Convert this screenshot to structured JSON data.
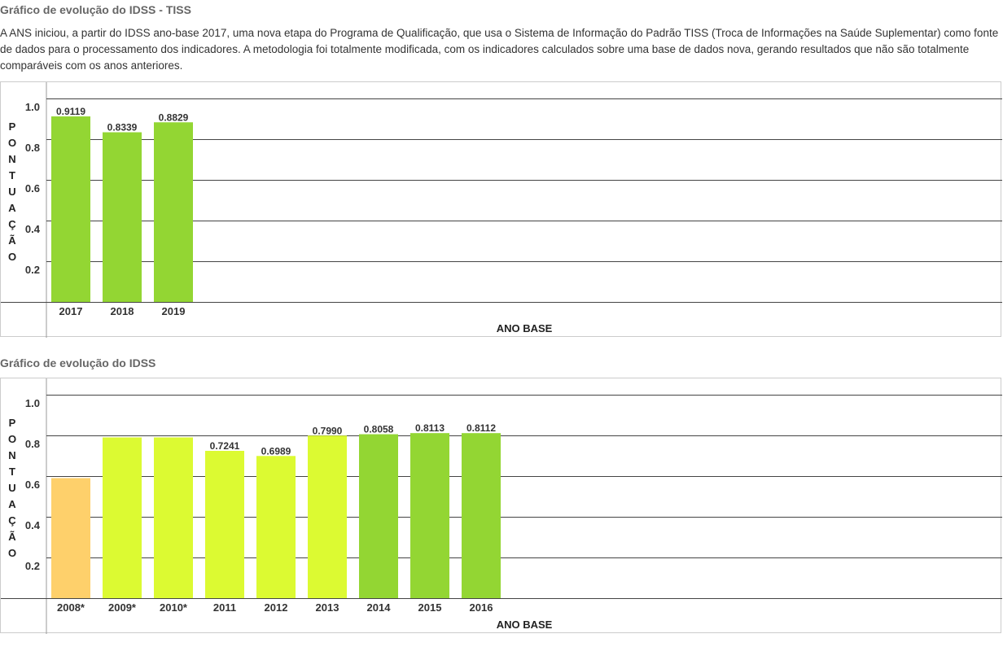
{
  "section1": {
    "title": "Gráfico de evolução do IDSS - TISS",
    "description": "A ANS iniciou, a partir do IDSS ano-base 2017, uma nova etapa do Programa de Qualificação, que usa o Sistema de Informação do Padrão TISS (Troca de Informações na Saúde Suplementar) como fonte de dados para o processamento dos indicadores. A metodologia foi totalmente modificada, com os indicadores calculados sobre uma base de dados nova, gerando resultados que não são totalmente comparáveis com os anos anteriores."
  },
  "section2": {
    "title": "Gráfico de evolução do IDSS"
  },
  "colors": {
    "green": "#93d633",
    "yellow_green": "#dcfa32",
    "orange": "#fed06b"
  },
  "chart_data": [
    {
      "type": "bar",
      "categories": [
        "2017",
        "2018",
        "2019"
      ],
      "values": [
        0.9119,
        0.8339,
        0.8829
      ],
      "value_labels": [
        "0.9119",
        "0.8339",
        "0.8829"
      ],
      "bar_colors": [
        "#93d633",
        "#93d633",
        "#93d633"
      ],
      "xlabel": "ANO BASE",
      "ylabel": "PONTUAÇÃO",
      "yticks": [
        "0.2",
        "0.4",
        "0.6",
        "0.8",
        "1.0"
      ],
      "ylim": [
        0,
        1.2
      ],
      "grid": true
    },
    {
      "type": "bar",
      "categories": [
        "2008*",
        "2009*",
        "2010*",
        "2011",
        "2012",
        "2013",
        "2014",
        "2015",
        "2016"
      ],
      "values": [
        0.59,
        0.79,
        0.79,
        0.7241,
        0.6989,
        0.799,
        0.8058,
        0.8113,
        0.8112
      ],
      "value_labels": [
        "",
        "",
        "",
        "0.7241",
        "0.6989",
        "0.7990",
        "0.8058",
        "0.8113",
        "0.8112"
      ],
      "bar_colors": [
        "#fed06b",
        "#dcfa32",
        "#dcfa32",
        "#dcfa32",
        "#dcfa32",
        "#dcfa32",
        "#93d633",
        "#93d633",
        "#93d633"
      ],
      "xlabel": "ANO BASE",
      "ylabel": "PONTUAÇÃO",
      "yticks": [
        "0.2",
        "0.4",
        "0.6",
        "0.8",
        "1.0"
      ],
      "ylim": [
        0,
        1.2
      ],
      "grid": true
    }
  ]
}
